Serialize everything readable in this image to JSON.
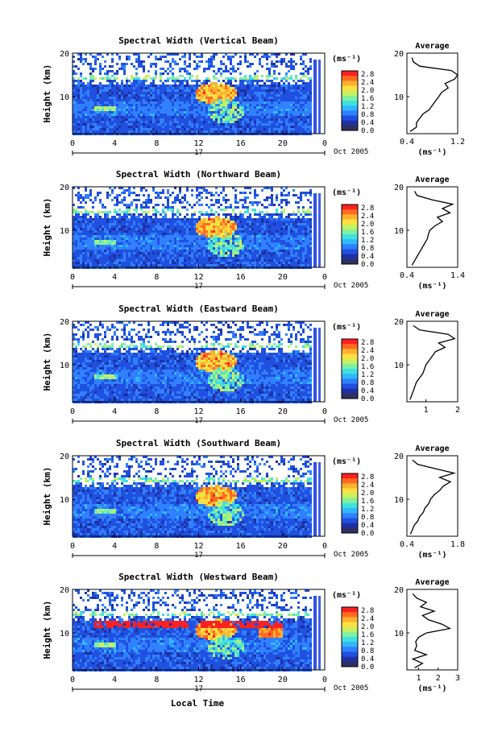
{
  "page": {
    "x_axis_title": "Local Time"
  },
  "colorbar": {
    "unit_label": "(ms⁻¹)",
    "ticks": [
      "2.8",
      "2.4",
      "2.0",
      "1.6",
      "1.2",
      "0.8",
      "0.4",
      "0.0"
    ],
    "colors": [
      "#ff2020",
      "#ff6a20",
      "#ffb030",
      "#ffe040",
      "#c8f060",
      "#80f0a0",
      "#40e0e0",
      "#30b8ff",
      "#3080ff",
      "#2050e0",
      "#2030a0",
      "#303060"
    ]
  },
  "chart_data": [
    {
      "type": "heatmap",
      "title": "Spectral Width (Vertical Beam)",
      "ylabel": "Height (km)",
      "xlim": [
        0,
        24
      ],
      "ylim": [
        1.5,
        20
      ],
      "x_ticks": [
        "0",
        "4",
        "8",
        "12",
        "16",
        "20",
        "0"
      ],
      "y_ticks": [
        "10",
        "20"
      ],
      "date_day": "17",
      "date_label": "Oct 2005",
      "profile": {
        "title": "Average",
        "xlabel": "(ms⁻¹)",
        "xlim": [
          0.4,
          1.2
        ],
        "x_ticks": [
          "0.4",
          "1.2"
        ],
        "ylim": [
          1.5,
          20
        ],
        "y_ticks": [
          "10",
          "20"
        ],
        "height_km": [
          2,
          3,
          4,
          5,
          6,
          7,
          8,
          9,
          10,
          11,
          12,
          13,
          14,
          15,
          16,
          17,
          18,
          19
        ],
        "width_ms": [
          0.45,
          0.55,
          0.55,
          0.6,
          0.65,
          0.75,
          0.8,
          0.85,
          0.9,
          0.95,
          1.05,
          1.0,
          1.15,
          1.2,
          1.1,
          0.6,
          0.5,
          0.48
        ]
      }
    },
    {
      "type": "heatmap",
      "title": "Spectral Width (Northward Beam)",
      "ylabel": "Height (km)",
      "xlim": [
        0,
        24
      ],
      "ylim": [
        1.5,
        20
      ],
      "x_ticks": [
        "0",
        "4",
        "8",
        "12",
        "16",
        "20",
        "0"
      ],
      "y_ticks": [
        "10",
        "20"
      ],
      "date_day": "17",
      "date_label": "Oct 2005",
      "profile": {
        "title": "Average",
        "xlabel": "(ms⁻¹)",
        "xlim": [
          0.4,
          1.4
        ],
        "x_ticks": [
          "0.4",
          "1.4"
        ],
        "ylim": [
          1.5,
          20
        ],
        "y_ticks": [
          "10",
          "20"
        ],
        "height_km": [
          2,
          3,
          4,
          5,
          6,
          7,
          8,
          9,
          10,
          11,
          12,
          13,
          14,
          15,
          16,
          17,
          18,
          19
        ],
        "width_ms": [
          0.5,
          0.55,
          0.6,
          0.65,
          0.7,
          0.75,
          0.8,
          0.82,
          0.85,
          0.95,
          1.1,
          1.0,
          1.25,
          1.1,
          1.3,
          0.9,
          0.6,
          0.55
        ]
      }
    },
    {
      "type": "heatmap",
      "title": "Spectral Width (Eastward Beam)",
      "ylabel": "Height (km)",
      "xlim": [
        0,
        24
      ],
      "ylim": [
        1.5,
        20
      ],
      "x_ticks": [
        "0",
        "4",
        "8",
        "12",
        "16",
        "20",
        "0"
      ],
      "y_ticks": [
        "10",
        "20"
      ],
      "date_day": "17",
      "date_label": "Oct 2005",
      "profile": {
        "title": "Average",
        "xlabel": "",
        "xlim": [
          0.4,
          2.0
        ],
        "x_ticks": [
          "1",
          "2"
        ],
        "ylim": [
          1.5,
          20
        ],
        "y_ticks": [
          "10",
          "20"
        ],
        "height_km": [
          2,
          3,
          4,
          5,
          6,
          7,
          8,
          9,
          10,
          11,
          12,
          13,
          14,
          15,
          16,
          17,
          18,
          19
        ],
        "width_ms": [
          0.5,
          0.55,
          0.6,
          0.65,
          0.7,
          0.8,
          0.9,
          0.95,
          1.0,
          1.1,
          1.2,
          1.3,
          1.6,
          1.4,
          1.9,
          1.7,
          0.8,
          0.6
        ]
      }
    },
    {
      "type": "heatmap",
      "title": "Spectral Width (Southward Beam)",
      "ylabel": "Height (km)",
      "xlim": [
        0,
        24
      ],
      "ylim": [
        1.5,
        20
      ],
      "x_ticks": [
        "0",
        "4",
        "8",
        "12",
        "16",
        "20",
        "0"
      ],
      "y_ticks": [
        "10",
        "20"
      ],
      "date_day": "17",
      "date_label": "Oct 2005",
      "profile": {
        "title": "Average",
        "xlabel": "(ms⁻¹)",
        "xlim": [
          0.4,
          1.8
        ],
        "x_ticks": [
          "0.4",
          "1.8"
        ],
        "ylim": [
          1.5,
          20
        ],
        "y_ticks": [
          "10",
          "20"
        ],
        "height_km": [
          2,
          3,
          4,
          5,
          6,
          7,
          8,
          9,
          10,
          11,
          12,
          13,
          14,
          15,
          16,
          17,
          18,
          19
        ],
        "width_ms": [
          0.5,
          0.55,
          0.6,
          0.7,
          0.75,
          0.85,
          0.9,
          1.0,
          1.05,
          1.15,
          1.3,
          1.4,
          1.6,
          1.3,
          1.7,
          1.2,
          0.7,
          0.55
        ]
      }
    },
    {
      "type": "heatmap",
      "title": "Spectral Width (Westward Beam)",
      "ylabel": "Height (km)",
      "xlim": [
        0,
        24
      ],
      "ylim": [
        1.5,
        20
      ],
      "x_ticks": [
        "0",
        "4",
        "8",
        "12",
        "16",
        "20",
        "0"
      ],
      "y_ticks": [
        "10",
        "20"
      ],
      "date_day": "17",
      "date_label": "Oct 2005",
      "xlabel": "Local Time",
      "profile": {
        "title": "Average",
        "xlabel": "(ms⁻¹)",
        "xlim": [
          0.4,
          3.0
        ],
        "x_ticks": [
          "1",
          "2",
          "3"
        ],
        "ylim": [
          1.5,
          20
        ],
        "y_ticks": [
          "10",
          "20"
        ],
        "height_km": [
          2,
          3,
          4,
          5,
          6,
          7,
          8,
          9,
          10,
          11,
          12,
          13,
          14,
          15,
          16,
          17,
          18,
          19
        ],
        "width_ms": [
          0.8,
          1.2,
          0.7,
          1.4,
          0.8,
          0.9,
          0.85,
          1.0,
          1.4,
          2.6,
          2.2,
          1.5,
          1.2,
          1.8,
          1.1,
          1.4,
          0.9,
          0.7
        ]
      }
    }
  ]
}
